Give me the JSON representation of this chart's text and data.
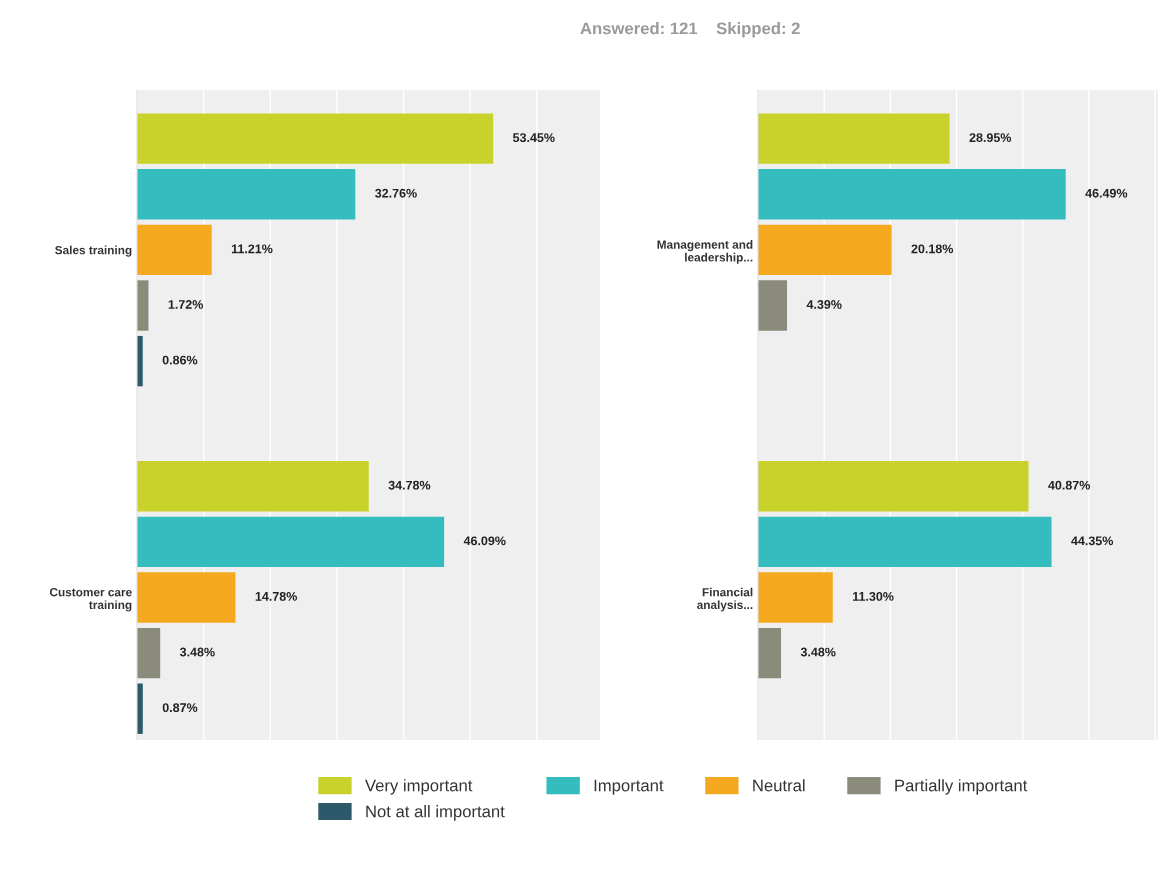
{
  "chart_data": [
    {
      "type": "bar",
      "orientation": "horizontal",
      "categories": [
        "Sales training",
        "Customer care\ntraining"
      ],
      "series": [
        {
          "name": "Very important",
          "color": "#c8d22a",
          "values": [
            53.45,
            34.78
          ],
          "value_labels": [
            "53.45%",
            "34.78%"
          ]
        },
        {
          "name": "Important",
          "color": "#34bcbf",
          "values": [
            32.76,
            46.09
          ],
          "value_labels": [
            "32.76%",
            "46.09%"
          ]
        },
        {
          "name": "Neutral",
          "color": "#f5a91e",
          "values": [
            11.21,
            14.78
          ],
          "value_labels": [
            "11.21%",
            "14.78%"
          ]
        },
        {
          "name": "Partially important",
          "color": "#8a8b7a",
          "values": [
            1.72,
            3.48
          ],
          "value_labels": [
            "1.72%",
            "3.48%"
          ]
        },
        {
          "name": "Not at all important",
          "color": "#2d5a6b",
          "values": [
            0.86,
            0.87
          ],
          "value_labels": [
            "0.86%",
            "0.87%"
          ]
        }
      ],
      "grid": "x",
      "tick_labels": "y",
      "legend": "bottom"
    },
    {
      "type": "bar",
      "orientation": "horizontal",
      "title": "Answered: 121    Skipped: 2",
      "categories": [
        "Management and\nleadership...",
        "Financial\nanalysis..."
      ],
      "series": [
        {
          "color": "#c8d22a",
          "values": [
            28.95,
            40.87
          ],
          "value_labels": [
            "28.95%",
            "40.87%"
          ]
        },
        {
          "color": "#34bcbf",
          "values": [
            46.49,
            44.35
          ],
          "value_labels": [
            "46.49%",
            "44.35%"
          ]
        },
        {
          "color": "#f5a91e",
          "values": [
            20.18,
            11.3
          ],
          "value_labels": [
            "20.18%",
            "11.30%"
          ]
        },
        {
          "color": "#8a8b7a",
          "values": [
            4.39,
            3.48
          ],
          "value_labels": [
            "4.39%",
            "3.48%"
          ]
        }
      ],
      "grid": "x",
      "tick_labels": "y"
    }
  ]
}
